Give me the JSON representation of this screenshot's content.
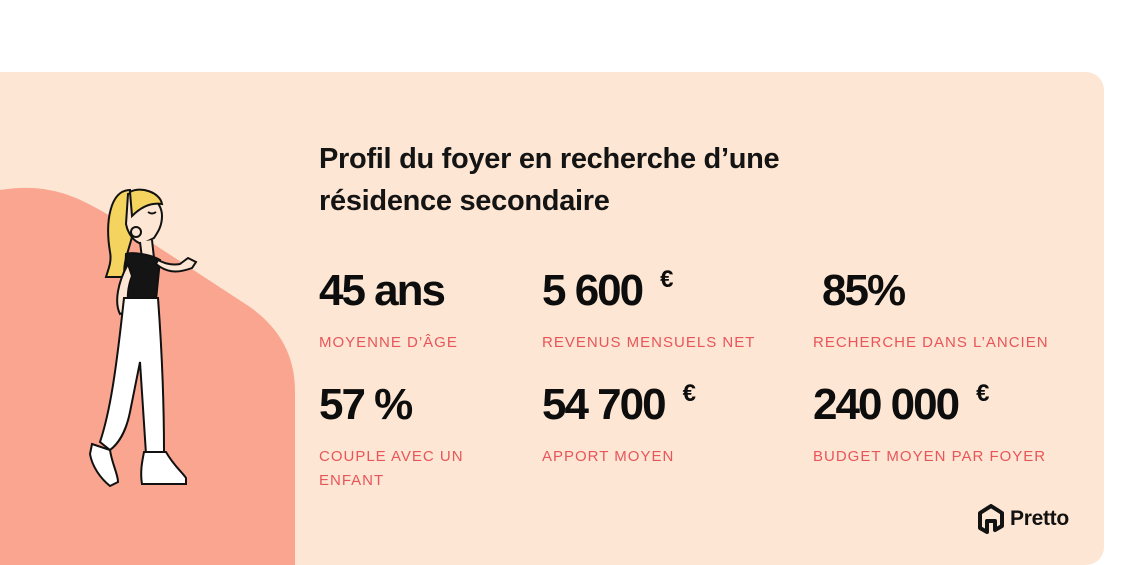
{
  "title": "Profil du foyer en recherche d’une résidence secondaire",
  "stats": [
    {
      "value": "45 ans",
      "currency": "",
      "label": "MOYENNE D’ÂGE"
    },
    {
      "value": "5 600",
      "currency": "€",
      "label": "REVENUS MENSUELS NET"
    },
    {
      "value": "85%",
      "currency": "",
      "label": "RECHERCHE DANS L’ANCIEN"
    },
    {
      "value": "57 %",
      "currency": "",
      "label": "COUPLE AVEC UN ENFANT"
    },
    {
      "value": "54 700",
      "currency": "€",
      "label": "APPORT MOYEN"
    },
    {
      "value": "240 000",
      "currency": "€",
      "label": "BUDGET MOYEN PAR FOYER"
    }
  ],
  "brand": {
    "name": "Pretto"
  },
  "colors": {
    "background": "#fde6d3",
    "accent": "#e8555a",
    "blob": "#f9a590",
    "text": "#0d0d0d"
  },
  "icons": {
    "logo": "house-logo-icon",
    "illustration": "woman-gesturing-illustration"
  }
}
